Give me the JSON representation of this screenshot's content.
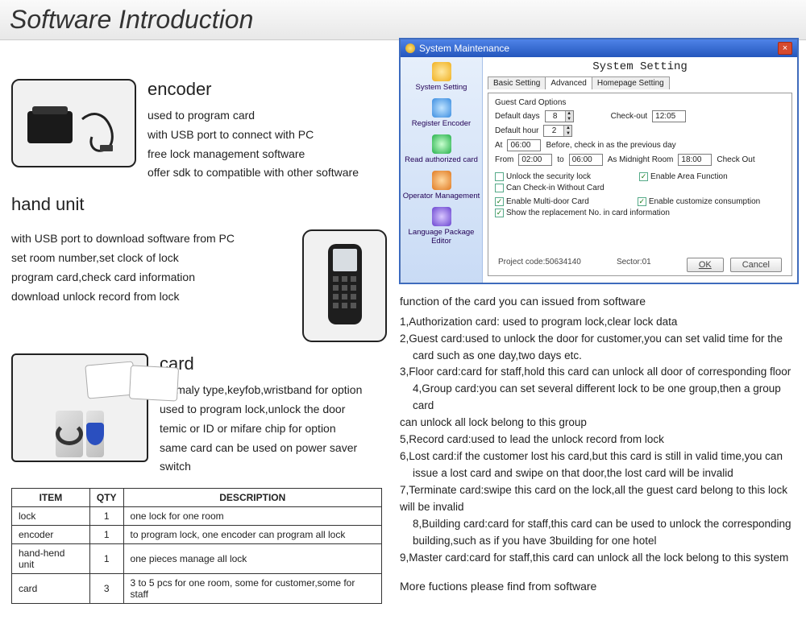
{
  "page_title": "Software Introduction",
  "encoder": {
    "heading": "encoder",
    "lines": [
      "used to program card",
      "with USB port to connect with PC",
      "free lock management software",
      "offer sdk to compatible with other software"
    ]
  },
  "handunit": {
    "heading": "hand unit",
    "lines": [
      "with USB port to download software from PC",
      "set room number,set clock of lock",
      "program card,check card information",
      "download unlock record from lock"
    ]
  },
  "card": {
    "heading": "card",
    "lines": [
      "normaly type,keyfob,wristband for option",
      "used to program lock,unlock the door",
      "temic or ID or mifare chip for option",
      "same card can be used on power saver switch"
    ]
  },
  "table": {
    "headers": [
      "ITEM",
      "QTY",
      "DESCRIPTION"
    ],
    "rows": [
      [
        "lock",
        "1",
        "one lock for one room"
      ],
      [
        "encoder",
        "1",
        "to program lock, one encoder can program all lock"
      ],
      [
        "hand-hend unit",
        "1",
        "one pieces manage all lock"
      ],
      [
        "card",
        "3",
        "3 to 5 pcs for one room, some for customer,some for staff"
      ]
    ]
  },
  "window": {
    "title": "System Maintenance",
    "setting_title": "System Setting",
    "sidebar": [
      "System Setting",
      "Register Encoder",
      "Read authorized card",
      "Operator Management",
      "Language Package Editor"
    ],
    "tabs": [
      "Basic Setting",
      "Advanced",
      "Homepage Setting"
    ],
    "active_tab": 1,
    "group_title": "Guest Card Options",
    "default_days_label": "Default days",
    "default_days": "8",
    "checkout_label": "Check-out",
    "checkout": "12:05",
    "default_hour_label": "Default hour",
    "default_hour": "2",
    "at_label": "At",
    "at_time": "06:00",
    "at_note": "Before, check in as the previous day",
    "from_label": "From",
    "from_time": "02:00",
    "to_label": "to",
    "to_time": "06:00",
    "midnight_label": "As Midnight Room",
    "midnight_time": "18:00",
    "midnight_co": "Check Out",
    "chk_unlock": "Unlock the security lock",
    "chk_area": "Enable Area Function",
    "chk_nocard": "Can Check-in Without Card",
    "chk_multi": "Enable Multi-door Card",
    "chk_custom": "Enable customize consumption",
    "chk_replace": "Show the replacement No. in card information",
    "project_label": "Project code:50634140",
    "sector_label": "Sector:01",
    "ok_btn": "OK",
    "cancel_btn": "Cancel"
  },
  "functions": {
    "heading": "function of the card you can issued from software",
    "items": [
      "1,Authorization card: used to program lock,clear lock data",
      "2,Guest card:used to unlock the door for customer,you can set valid time for the",
      "card such as one day,two days etc.",
      "3,Floor card:card for staff,hold this card can unlock all door of corresponding floor",
      "4,Group card:you can set several different lock to be one group,then a group card",
      "can unlock all lock belong to this group",
      "5,Record card:used to lead the unlock record from lock",
      "6,Lost card:if the customer lost his card,but this card is still in valid time,you can",
      "issue a lost card and swipe on that door,the lost card will be invalid",
      "7,Terminate card:swipe this card on the lock,all the guest card belong to this lock",
      "will be invalid",
      "8,Building card:card for staff,this card can be used to unlock the corresponding",
      "building,such as if you have 3building for one hotel",
      "9,Master card:card for staff,this card can unlock all the lock belong to this system"
    ],
    "indent_idx": [
      2,
      4,
      8,
      11,
      12
    ],
    "more": "More fuctions please find from software"
  }
}
